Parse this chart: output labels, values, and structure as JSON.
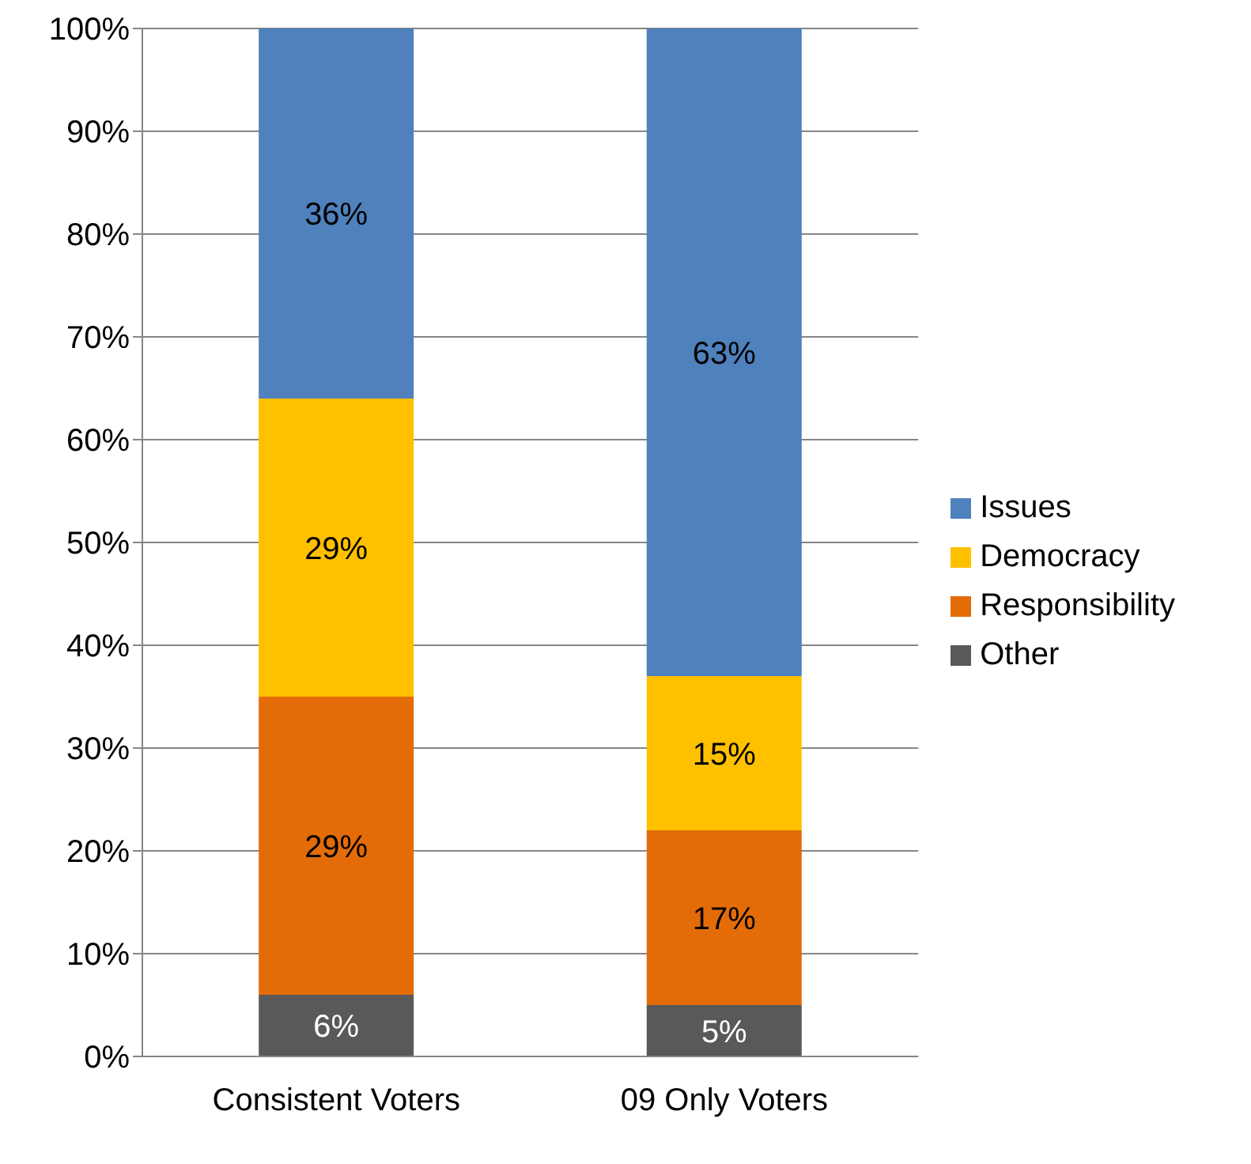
{
  "chart_data": {
    "type": "bar",
    "stacked": true,
    "categories": [
      "Consistent Voters",
      "09 Only Voters"
    ],
    "series": [
      {
        "name": "Other",
        "color": "#595959",
        "values": [
          6,
          5
        ],
        "value_labels": [
          "6%",
          "5%"
        ]
      },
      {
        "name": "Responsibility",
        "color": "#e36c09",
        "values": [
          29,
          17
        ],
        "value_labels": [
          "29%",
          "17%"
        ]
      },
      {
        "name": "Democracy",
        "color": "#ffc000",
        "values": [
          29,
          15
        ],
        "value_labels": [
          "29%",
          "15%"
        ]
      },
      {
        "name": "Issues",
        "color": "#4f81bd",
        "values": [
          36,
          63
        ],
        "value_labels": [
          "36%",
          "63%"
        ]
      }
    ],
    "ylim": [
      0,
      100
    ],
    "yticks": [
      {
        "value": 0,
        "label": "0%"
      },
      {
        "value": 10,
        "label": "10%"
      },
      {
        "value": 20,
        "label": "20%"
      },
      {
        "value": 30,
        "label": "30%"
      },
      {
        "value": 40,
        "label": "40%"
      },
      {
        "value": 50,
        "label": "50%"
      },
      {
        "value": 60,
        "label": "60%"
      },
      {
        "value": 70,
        "label": "70%"
      },
      {
        "value": 80,
        "label": "80%"
      },
      {
        "value": 90,
        "label": "90%"
      },
      {
        "value": 100,
        "label": "100%"
      }
    ],
    "grid": "y",
    "legend": "right"
  }
}
